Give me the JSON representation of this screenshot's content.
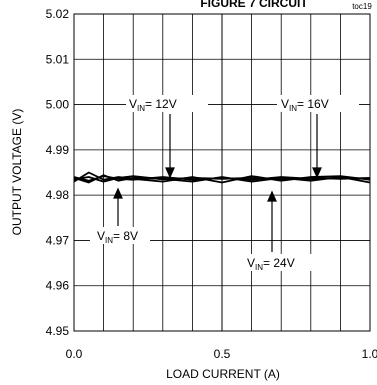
{
  "chart_data": {
    "type": "line",
    "title": "FIGURE 7 CIRCUIT",
    "figure_code": "toc19",
    "xlabel": "LOAD CURRENT (A)",
    "ylabel": "OUTPUT VOLTAGE (V)",
    "xlim": [
      0.0,
      1.0
    ],
    "ylim": [
      4.95,
      5.02
    ],
    "x_ticks": [
      "0.0",
      "0.5",
      "1.0"
    ],
    "y_ticks": [
      "4.95",
      "4.96",
      "4.97",
      "4.98",
      "4.99",
      "5.00",
      "5.01",
      "5.02"
    ],
    "grid": true,
    "series": [
      {
        "name": "8V",
        "x": [
          0.0,
          0.05,
          0.1,
          0.15,
          0.2,
          0.3,
          0.4,
          0.5,
          0.6,
          0.7,
          0.8,
          0.9,
          1.0
        ],
        "y": [
          4.9835,
          4.984,
          4.983,
          4.9838,
          4.9842,
          4.9835,
          4.9838,
          4.9836,
          4.9838,
          4.9834,
          4.9838,
          4.9836,
          4.9838
        ]
      },
      {
        "name": "12V",
        "x": [
          0.0,
          0.05,
          0.1,
          0.15,
          0.2,
          0.3,
          0.4,
          0.5,
          0.6,
          0.7,
          0.8,
          0.9,
          1.0
        ],
        "y": [
          4.984,
          4.9832,
          4.9842,
          4.9836,
          4.9834,
          4.984,
          4.9834,
          4.9838,
          4.9834,
          4.984,
          4.9836,
          4.9838,
          4.9836
        ]
      },
      {
        "name": "16V",
        "x": [
          0.0,
          0.05,
          0.1,
          0.15,
          0.2,
          0.3,
          0.4,
          0.5,
          0.6,
          0.7,
          0.8,
          0.9,
          1.0
        ],
        "y": [
          4.983,
          4.985,
          4.9834,
          4.984,
          4.9836,
          4.983,
          4.984,
          4.9828,
          4.9842,
          4.9832,
          4.984,
          4.9842,
          4.9834
        ]
      },
      {
        "name": "24V",
        "x": [
          0.0,
          0.05,
          0.1,
          0.15,
          0.2,
          0.3,
          0.4,
          0.5,
          0.6,
          0.7,
          0.8,
          0.9,
          1.0
        ],
        "y": [
          4.9838,
          4.9828,
          4.9844,
          4.9832,
          4.9838,
          4.9836,
          4.983,
          4.984,
          4.983,
          4.9838,
          4.9832,
          4.984,
          4.9828
        ]
      }
    ],
    "annotations": [
      {
        "prefix": "V",
        "sub": "IN",
        "text": "= 12V"
      },
      {
        "prefix": "V",
        "sub": "IN",
        "text": "= 16V"
      },
      {
        "prefix": "V",
        "sub": "IN",
        "text": "= 8V"
      },
      {
        "prefix": "V",
        "sub": "IN",
        "text": "= 24V"
      }
    ]
  }
}
